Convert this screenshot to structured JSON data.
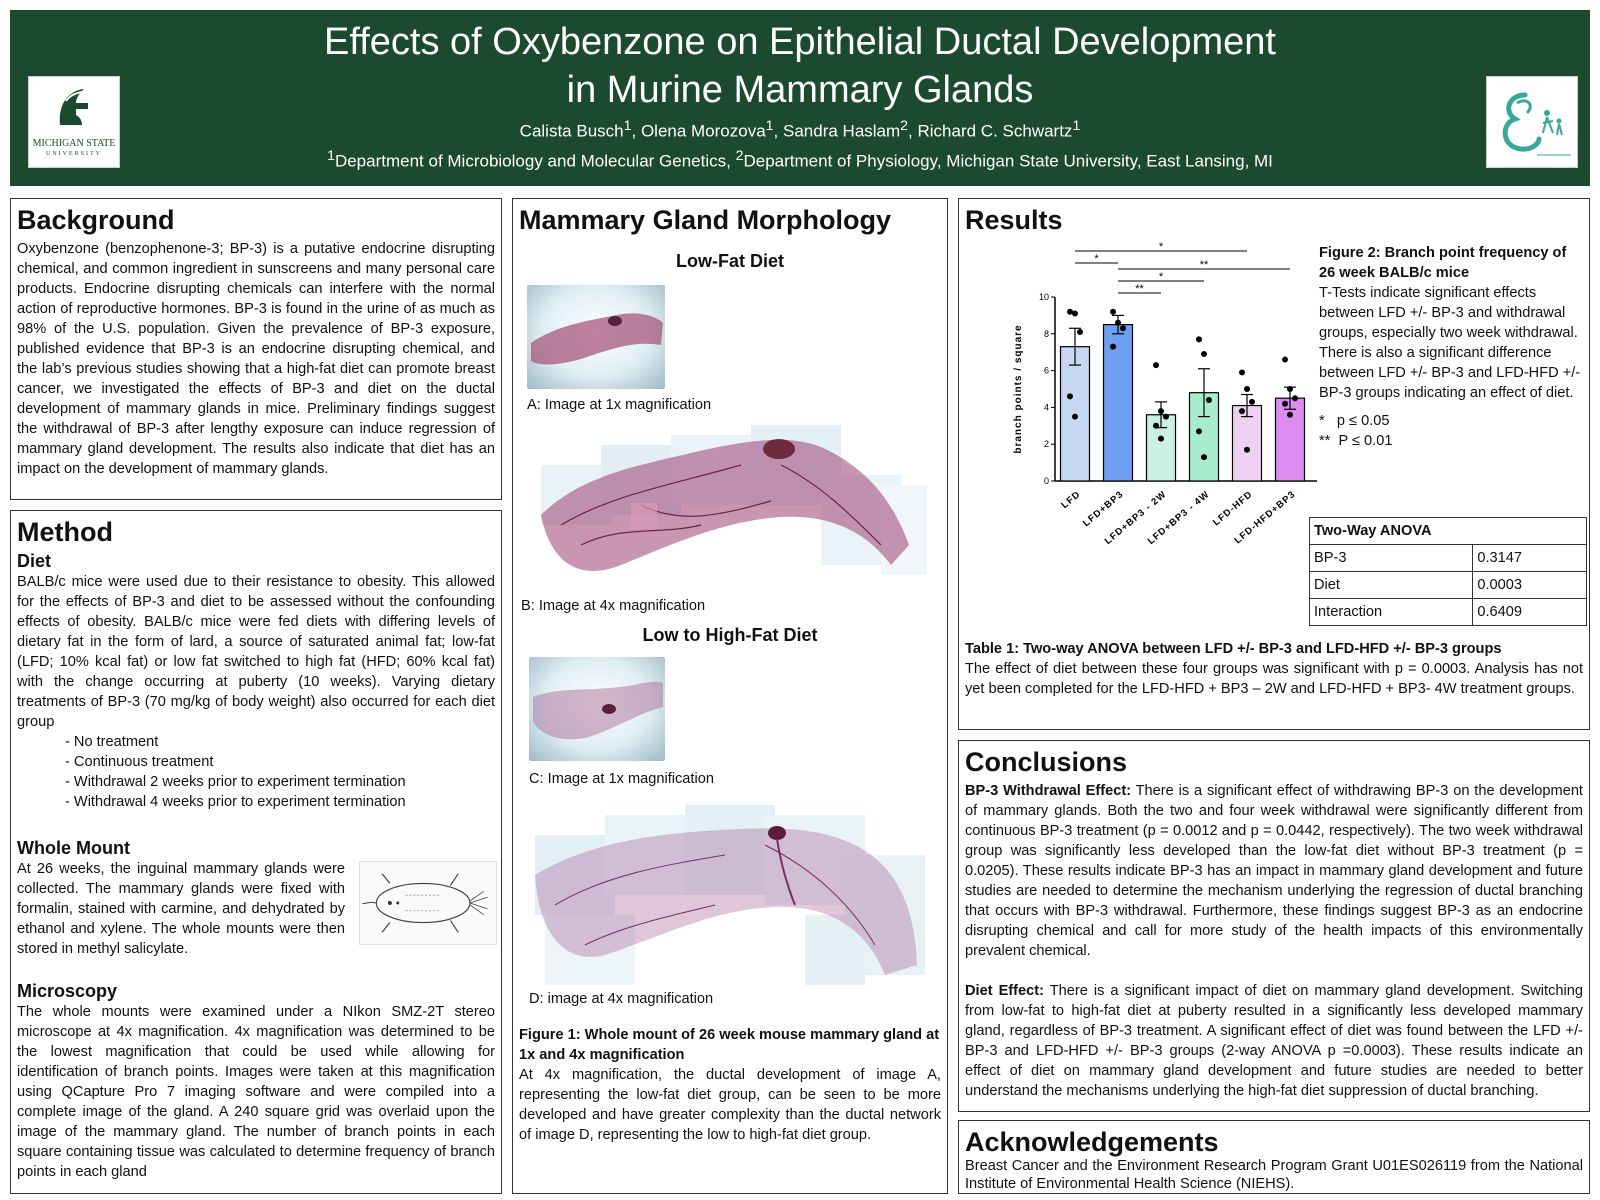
{
  "header": {
    "title_line1": "Effects of Oxybenzone on Epithelial Ductal Development",
    "title_line2": "in Murine Mammary Glands",
    "authors": [
      {
        "name": "Calista Busch",
        "sup": "1"
      },
      {
        "name": "Olena Morozova",
        "sup": "1"
      },
      {
        "name": "Sandra Haslam",
        "sup": "2"
      },
      {
        "name": "Richard C. Schwartz",
        "sup": "1"
      }
    ],
    "affil_1_sup": "1",
    "affil_1": "Department of Microbiology and Molecular Genetics, ",
    "affil_2_sup": "2",
    "affil_2": "Department of Physiology, Michigan State University, East Lansing, MI",
    "msu_logo_text": "MICHIGAN STATE",
    "msu_logo_sub": "UNIVERSITY",
    "bcerp_logo_text": "Breast Cancer & the Environment Research Program"
  },
  "background": {
    "heading": "Background",
    "text": "Oxybenzone (benzophenone-3; BP-3) is a putative endocrine disrupting chemical, and common ingredient in sunscreens and many personal care products. Endocrine disrupting chemicals can interfere with the normal action of reproductive hormones. BP-3 is found in the urine of as much as 98% of the U.S. population. Given the prevalence of BP-3 exposure, published evidence that BP-3 is an endocrine disrupting chemical, and the lab’s previous studies showing that a high-fat diet can promote breast cancer, we investigated the effects of BP-3 and diet on the ductal development of mammary glands in mice. Preliminary findings suggest the withdrawal of BP-3 after lengthy exposure can induce regression of mammary gland development. The results also indicate that diet has an impact on the development of mammary glands."
  },
  "method": {
    "heading": "Method",
    "diet_heading": "Diet",
    "diet_text": "BALB/c mice were used due to their resistance to obesity. This allowed for the effects of BP-3 and diet to be assessed without the confounding effects of obesity. BALB/c mice were fed diets with differing levels of dietary fat in the form of lard, a source of saturated animal fat; low-fat (LFD; 10% kcal fat) or low fat switched to high fat (HFD; 60% kcal fat) with the change occurring at puberty (10 weeks). Varying dietary treatments of BP-3 (70 mg/kg of body weight) also occurred for each diet group",
    "diet_list": [
      "- No treatment",
      "- Continuous treatment",
      "- Withdrawal 2 weeks prior to experiment termination",
      "- Withdrawal 4 weeks prior to experiment termination"
    ],
    "whole_mount_heading": "Whole Mount",
    "whole_mount_text": "At 26 weeks, the inguinal mammary glands were collected. The mammary glands were fixed with formalin, stained with carmine, and dehydrated by ethanol and xylene. The whole mounts were then stored in methyl salicylate.",
    "microscopy_heading": "Microscopy",
    "microscopy_text": "The whole mounts were examined under a NIkon SMZ-2T stereo microscope at 4x magnification. 4x magnification was determined to be the lowest magnification that could be used while allowing for identification of branch points. Images were taken at this magnification using QCapture Pro 7 imaging software and were compiled into a complete image of the gland. A 240 square grid was overlaid upon the image of the mammary gland. The number of branch points in each square containing tissue was calculated to determine frequency of branch points in each gland"
  },
  "morphology": {
    "heading": "Mammary Gland Morphology",
    "lfd_heading": "Low-Fat Diet",
    "cap_a": "A: Image at 1x magnification",
    "cap_b": "B: Image at 4x magnification",
    "lhfd_heading": "Low to High-Fat Diet",
    "cap_c": "C: Image at 1x magnification",
    "cap_d": "D: image at 4x magnification",
    "fig1_title": "Figure 1: Whole mount of 26 week mouse mammary gland at 1x and 4x magnification",
    "fig1_text": "At 4x magnification, the ductal development of image A, representing the low-fat diet group, can be seen to be more developed and have greater complexity than the ductal network of image D, representing the low to high-fat diet group."
  },
  "results": {
    "heading": "Results",
    "fig2_title": "Figure 2: Branch point frequency of 26 week BALB/c mice",
    "fig2_text": "T-Tests indicate significant effects between LFD +/- BP-3 and withdrawal groups, especially two week withdrawal. There is also a significant difference between LFD +/- BP-3 and LFD-HFD +/- BP-3 groups indicating an effect of diet.",
    "legend_1": "*   p ≤ 0.05",
    "legend_2": "**  P ≤ 0.01",
    "anova_header": "Two-Way ANOVA",
    "anova_rows": [
      {
        "label": "BP-3",
        "value": "0.3147"
      },
      {
        "label": "Diet",
        "value": "0.0003"
      },
      {
        "label": "Interaction",
        "value": "0.6409"
      }
    ],
    "table1_title": "Table 1: Two-way ANOVA between LFD +/- BP-3 and LFD-HFD +/- BP-3 groups",
    "table1_text": "The effect of diet between these four groups was significant with p = 0.0003. Analysis has not yet been completed for the LFD-HFD + BP3 – 2W and LFD-HFD + BP3- 4W treatment groups."
  },
  "chart_data": {
    "type": "bar",
    "ylabel": "branch points / square",
    "ylim": [
      0,
      10
    ],
    "yticks": [
      "0",
      "2",
      "4",
      "6",
      "8",
      "10"
    ],
    "categories": [
      "LFD",
      "LFD+BP3",
      "LFD+BP3 - 2W",
      "LFD+BP3 - 4W",
      "LFD-HFD",
      "LFD-HFD+BP3"
    ],
    "values": [
      7.3,
      8.5,
      3.6,
      4.8,
      4.1,
      4.5
    ],
    "errors": [
      1.0,
      0.5,
      0.7,
      1.3,
      0.6,
      0.6
    ],
    "points": [
      [
        9.2,
        9.1,
        8.1,
        4.6,
        3.5
      ],
      [
        9.2,
        8.6,
        8.3,
        7.3
      ],
      [
        6.3,
        3.8,
        3.5,
        3.0,
        2.3
      ],
      [
        7.7,
        6.9,
        4.4,
        2.7,
        1.3
      ],
      [
        5.9,
        5.0,
        4.3,
        3.8,
        1.7
      ],
      [
        6.6,
        5.0,
        4.5,
        4.2,
        3.6
      ]
    ],
    "bar_colors": [
      "#c6d8f3",
      "#6f9ff0",
      "#c9f0e0",
      "#a8ecd0",
      "#ecd1f3",
      "#dd8cef"
    ],
    "significance": [
      {
        "from": 0,
        "to": 4,
        "label": "*"
      },
      {
        "from": 0,
        "to": 1,
        "label": "*"
      },
      {
        "from": 1,
        "to": 5,
        "label": "**"
      },
      {
        "from": 1,
        "to": 3,
        "label": "*"
      },
      {
        "from": 1,
        "to": 2,
        "label": "**"
      }
    ]
  },
  "conclusions": {
    "heading": "Conclusions",
    "withdrawal_label": "BP-3 Withdrawal Effect:",
    "withdrawal_text": " There is a significant effect of withdrawing BP-3 on the development of mammary glands. Both the two and four week withdrawal were significantly different from continuous BP-3 treatment (p = 0.0012 and p = 0.0442, respectively). The two week withdrawal group was significantly less developed than the low-fat diet without BP-3 treatment (p = 0.0205). These results indicate BP-3 has an impact in mammary gland development and future studies are needed to determine the mechanism underlying the regression of ductal branching that occurs with BP-3 withdrawal. Furthermore, these findings suggest BP-3 as an endocrine disrupting chemical and call for more study of the health impacts of this environmentally prevalent chemical.",
    "diet_label": "Diet Effect:",
    "diet_text": " There is a significant impact of diet on mammary gland development. Switching from low-fat to high-fat diet at puberty resulted in a significantly less developed mammary gland, regardless of BP-3 treatment. A significant effect of diet was found between the LFD +/- BP-3 and LFD-HFD +/- BP-3 groups (2-way ANOVA p =0.0003). These results indicate an effect of diet on mammary gland development and future studies are needed to better understand the mechanisms underlying the high-fat diet suppression of ductal branching."
  },
  "acknowledgements": {
    "heading": "Acknowledgements",
    "text": "Breast Cancer and the Environment Research Program Grant U01ES026119 from the National Institute of Environmental Health Science (NIEHS)."
  },
  "colors": {
    "header_bg": "#1b4a2f",
    "stain": "#9c3f73"
  }
}
